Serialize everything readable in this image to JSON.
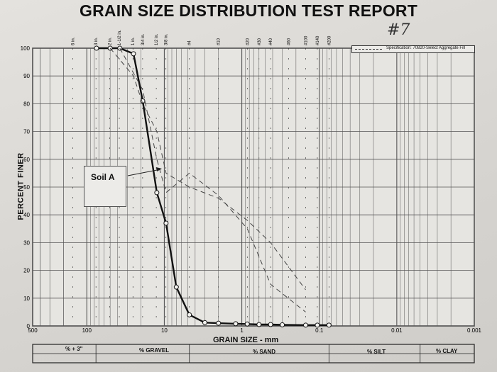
{
  "title": "GRAIN SIZE DISTRIBUTION TEST REPORT",
  "hand_note": "#7",
  "legend_text": "Specification: 70820-Select Aggregate Fill",
  "annotation": "Soil A",
  "sieves": [
    "6 in.",
    "3 in.",
    "2 in.",
    "1-1/2 in.",
    "1 in.",
    "3/4 in.",
    "1/2 in.",
    "3/8 in.",
    "#4",
    "#10",
    "#20",
    "#30",
    "#40",
    "#60",
    "#100",
    "#140",
    "#200"
  ],
  "bottom_table": {
    "row1": [
      "% + 3\"",
      "% GRAVEL",
      "% SILT",
      "% CLAY"
    ],
    "row2": [
      "% SAND"
    ]
  },
  "colors": {
    "curve": "#111111",
    "spec": "#444444",
    "grid": "#555555"
  },
  "chart_data": {
    "type": "line",
    "xlabel": "GRAIN SIZE - mm",
    "ylabel": "PERCENT FINER",
    "x_scale": "log",
    "x_reversed": true,
    "xlim": [
      500,
      0.001
    ],
    "ylim": [
      0,
      100
    ],
    "x_ticks": [
      500,
      100,
      10,
      1,
      0.1,
      0.01,
      0.001
    ],
    "x_tick_labels": [
      "500",
      "100",
      "10",
      "1",
      "0.1",
      "0.01",
      "0.001"
    ],
    "y_ticks": [
      0,
      10,
      20,
      30,
      40,
      50,
      60,
      70,
      80,
      90,
      100
    ],
    "series": [
      {
        "name": "Soil A",
        "style": "solid-markers",
        "x": [
          75,
          50,
          37.5,
          25,
          19,
          12.5,
          9.5,
          7,
          4.75,
          3,
          2,
          1.2,
          0.85,
          0.6,
          0.425,
          0.3,
          0.15,
          0.106,
          0.075
        ],
        "y": [
          100,
          100,
          100,
          98,
          81,
          48,
          37,
          14,
          4,
          1.2,
          1,
          0.8,
          0.7,
          0.5,
          0.5,
          0.4,
          0.3,
          0.3,
          0.3
        ]
      },
      {
        "name": "Specification: 70820-Select Aggregate Fill",
        "style": "dashed",
        "x": [
          37.5,
          19,
          12.5,
          9.5,
          4.75,
          2,
          0.85,
          0.425,
          0.15
        ],
        "y": [
          100,
          85,
          60,
          48,
          55,
          47,
          35,
          15,
          5
        ]
      },
      {
        "name": "Specification: 70820-Select Aggregate Fill",
        "style": "dashed",
        "x": [
          50,
          25,
          19,
          12.5,
          9.5,
          4.75,
          2,
          0.85,
          0.425,
          0.15
        ],
        "y": [
          100,
          90,
          80,
          70,
          55,
          50,
          46,
          38,
          30,
          13
        ]
      }
    ]
  }
}
